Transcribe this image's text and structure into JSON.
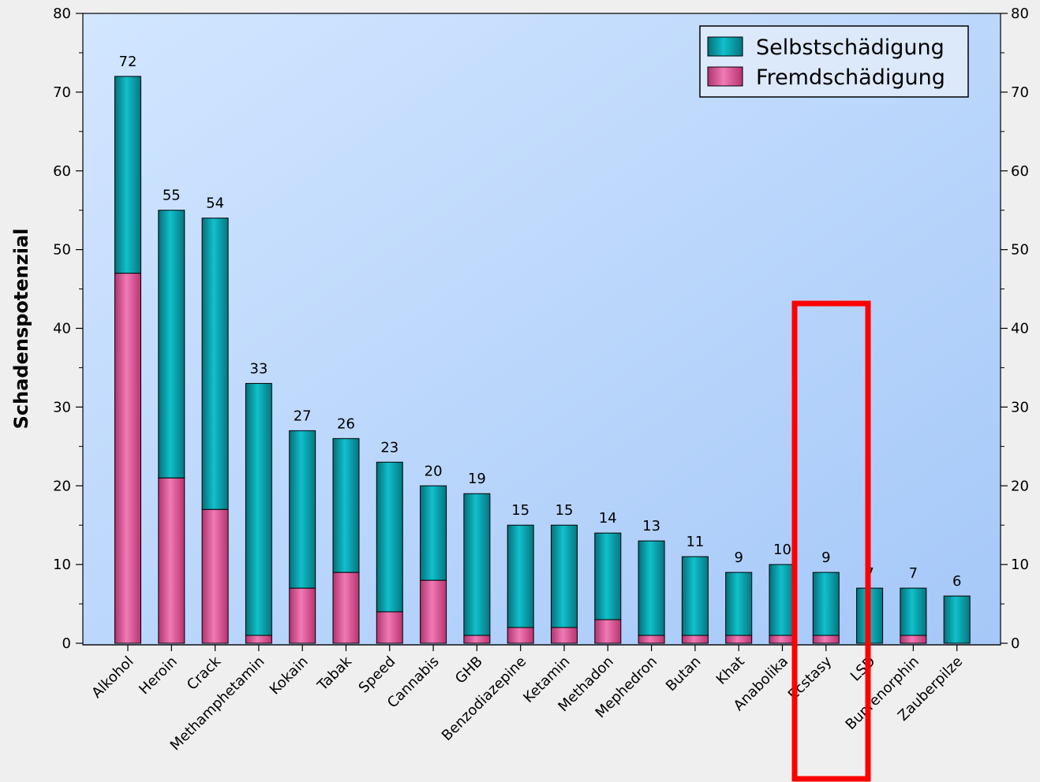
{
  "chart_data": {
    "type": "bar",
    "stacked": true,
    "title": "",
    "xlabel": "",
    "ylabel": "Schadenspotenzial",
    "ylim": [
      0,
      80
    ],
    "yticks": [
      0,
      10,
      20,
      30,
      40,
      50,
      60,
      70,
      80
    ],
    "grid": false,
    "legend_position": "top-right",
    "categories": [
      "Alkohol",
      "Heroin",
      "Crack",
      "Methamphetamin",
      "Kokain",
      "Tabak",
      "Speed",
      "Cannabis",
      "GHB",
      "Benzodiazepine",
      "Ketamin",
      "Methadon",
      "Mephedron",
      "Butan",
      "Khat",
      "Anabolika",
      "Ecstasy",
      "LSD",
      "Buprenorphin",
      "Zauberpilze"
    ],
    "series": [
      {
        "name": "Selbstschädigung",
        "color": "#0aa5b0",
        "values": [
          25,
          34,
          37,
          32,
          20,
          17,
          19,
          12,
          18,
          13,
          13,
          11,
          12,
          10,
          8,
          9,
          8,
          7,
          6,
          6
        ]
      },
      {
        "name": "Fremdschädigung",
        "color": "#e0559a",
        "values": [
          47,
          21,
          17,
          1,
          7,
          9,
          4,
          8,
          1,
          2,
          2,
          3,
          1,
          1,
          1,
          1,
          1,
          0,
          1,
          0
        ]
      }
    ],
    "totals": [
      "72",
      "55",
      "54",
      "33",
      "27",
      "26",
      "23",
      "20",
      "19",
      "15",
      "15",
      "14",
      "13",
      "11",
      "9",
      "10",
      "9",
      "7",
      "7",
      "6"
    ],
    "highlight": {
      "category": "Ecstasy",
      "color": "#ff0000"
    }
  }
}
